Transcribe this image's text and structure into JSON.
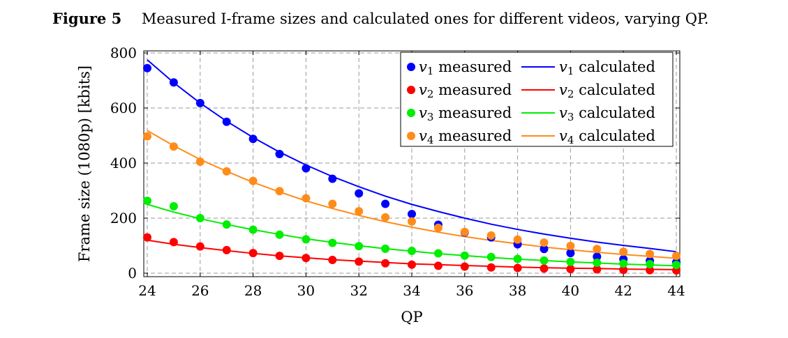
{
  "caption": {
    "label": "Figure 5",
    "text": "Measured I-frame sizes and calculated ones for different videos, varying QP."
  },
  "chart_data": {
    "type": "scatter",
    "title": "",
    "xlabel": "QP",
    "ylabel": "Frame size (1080p) [kbits]",
    "xlim": [
      24,
      44
    ],
    "ylim": [
      0,
      800
    ],
    "xticks": [
      24,
      26,
      28,
      30,
      32,
      34,
      36,
      38,
      40,
      42,
      44
    ],
    "yticks": [
      0,
      200,
      400,
      600,
      800
    ],
    "grid": true,
    "legend_position": "top-right",
    "x": [
      24,
      25,
      26,
      27,
      28,
      29,
      30,
      31,
      32,
      33,
      34,
      35,
      36,
      37,
      38,
      39,
      40,
      41,
      42,
      43,
      44
    ],
    "series": [
      {
        "name": "v1 measured",
        "var": "v",
        "sub": "1",
        "suffix": "measured",
        "kind": "scatter",
        "color": "#0000ff",
        "values": [
          745,
          693,
          618,
          550,
          488,
          433,
          381,
          343,
          290,
          252,
          215,
          176,
          148,
          130,
          105,
          88,
          73,
          60,
          51,
          45,
          40
        ]
      },
      {
        "name": "v1 calculated",
        "var": "v",
        "sub": "1",
        "suffix": "calculated",
        "kind": "line",
        "color": "#0000ff",
        "values": [
          775,
          692,
          618,
          552,
          493,
          440,
          393,
          351,
          314,
          280,
          250,
          224,
          200,
          178,
          159,
          142,
          127,
          113,
          101,
          90,
          78
        ]
      },
      {
        "name": "v2 measured",
        "var": "v",
        "sub": "2",
        "suffix": "measured",
        "kind": "scatter",
        "color": "#ff0000",
        "values": [
          130,
          113,
          97,
          84,
          73,
          63,
          55,
          48,
          42,
          36,
          31,
          27,
          24,
          21,
          19,
          17,
          15,
          14,
          12,
          11,
          10
        ]
      },
      {
        "name": "v2 calculated",
        "var": "v",
        "sub": "2",
        "suffix": "calculated",
        "kind": "line",
        "color": "#ff0000",
        "values": [
          120,
          105,
          93,
          82,
          72,
          63,
          56,
          49,
          44,
          39,
          34,
          31,
          28,
          25,
          22,
          20,
          18,
          17,
          15,
          14,
          13
        ]
      },
      {
        "name": "v3 measured",
        "var": "v",
        "sub": "3",
        "suffix": "measured",
        "kind": "scatter",
        "color": "#00ee00",
        "values": [
          263,
          243,
          200,
          177,
          158,
          140,
          123,
          110,
          98,
          89,
          81,
          72,
          64,
          59,
          52,
          46,
          41,
          38,
          35,
          33,
          30
        ]
      },
      {
        "name": "v3 calculated",
        "var": "v",
        "sub": "3",
        "suffix": "calculated",
        "kind": "line",
        "color": "#00ee00",
        "values": [
          250,
          222,
          198,
          177,
          158,
          141,
          125,
          112,
          100,
          89,
          80,
          71,
          64,
          57,
          51,
          46,
          41,
          37,
          33,
          30,
          27
        ]
      },
      {
        "name": "v4 measured",
        "var": "v",
        "sub": "4",
        "suffix": "measured",
        "kind": "scatter",
        "color": "#ff8c1a",
        "values": [
          497,
          460,
          405,
          370,
          335,
          298,
          272,
          252,
          225,
          203,
          188,
          165,
          150,
          137,
          122,
          111,
          99,
          88,
          78,
          70,
          63
        ]
      },
      {
        "name": "v4 calculated",
        "var": "v",
        "sub": "4",
        "suffix": "calculated",
        "kind": "line",
        "color": "#ff8c1a",
        "values": [
          518,
          463,
          413,
          370,
          330,
          295,
          263,
          235,
          210,
          187,
          167,
          149,
          133,
          119,
          107,
          95,
          85,
          76,
          68,
          61,
          54
        ]
      }
    ]
  }
}
